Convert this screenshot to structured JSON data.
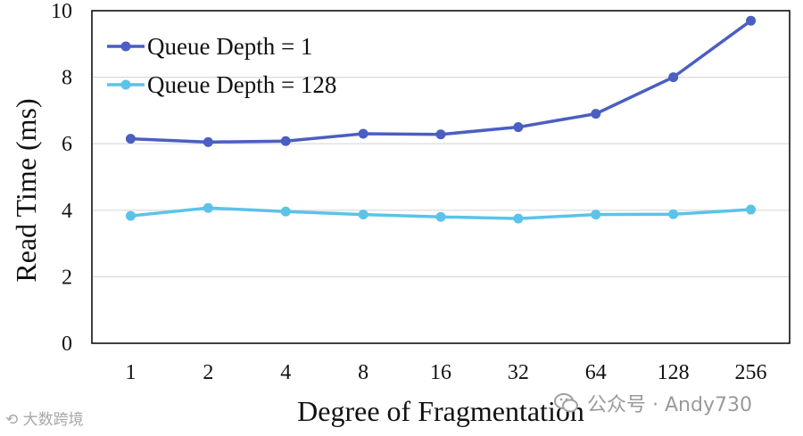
{
  "chart_data": {
    "type": "line",
    "title": "",
    "xlabel": "Degree of Fragmentation",
    "ylabel": "Read Time (ms)",
    "categories": [
      "1",
      "2",
      "4",
      "8",
      "16",
      "32",
      "64",
      "128",
      "256"
    ],
    "ylim": [
      0,
      10
    ],
    "yticks": [
      "0",
      "2",
      "4",
      "6",
      "8",
      "10"
    ],
    "grid": "horizontal",
    "legend_position": "top-left",
    "series": [
      {
        "name": "Queue Depth = 1",
        "color": "#4a5fc1",
        "values": [
          6.15,
          6.05,
          6.08,
          6.3,
          6.28,
          6.5,
          6.9,
          8.0,
          9.7
        ]
      },
      {
        "name": "Queue Depth = 128",
        "color": "#5bc3e8",
        "values": [
          3.83,
          4.07,
          3.96,
          3.87,
          3.8,
          3.75,
          3.87,
          3.88,
          4.02
        ]
      }
    ]
  },
  "watermark": {
    "right_text": "公众号 · Andy730",
    "left_text": "大数跨境"
  }
}
